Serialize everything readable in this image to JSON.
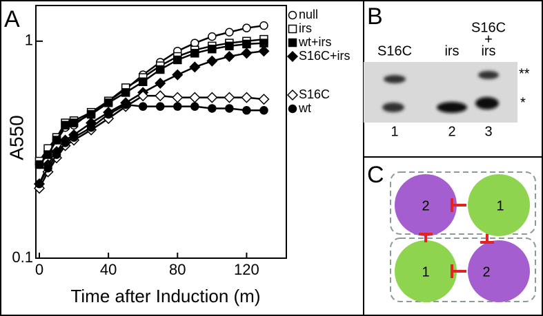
{
  "panels": {
    "a": "A",
    "b": "B",
    "c": "C"
  },
  "chart_data": {
    "type": "line",
    "xlabel": "Time after Induction (m)",
    "ylabel": "A550",
    "x": [
      0,
      5,
      10,
      15,
      20,
      30,
      40,
      50,
      60,
      70,
      80,
      90,
      100,
      110,
      120,
      130
    ],
    "xlim": [
      -2,
      143
    ],
    "xticks": [
      0,
      40,
      80,
      120
    ],
    "ylim": [
      0.1,
      1.46
    ],
    "yticks": [
      0.1,
      1
    ],
    "log_y": true,
    "series": [
      {
        "name": "null",
        "color": "#000000",
        "marker": "circle-open",
        "values": [
          0.27,
          0.31,
          0.35,
          0.4,
          0.41,
          0.47,
          0.53,
          0.6,
          0.7,
          0.8,
          0.9,
          0.98,
          1.05,
          1.1,
          1.15,
          1.18
        ]
      },
      {
        "name": "irs",
        "color": "#000000",
        "marker": "square-open",
        "values": [
          0.28,
          0.32,
          0.36,
          0.42,
          0.43,
          0.47,
          0.53,
          0.61,
          0.68,
          0.77,
          0.85,
          0.91,
          0.95,
          0.98,
          1.0,
          1.02
        ]
      },
      {
        "name": "wt+irs",
        "color": "#000000",
        "marker": "square",
        "values": [
          0.27,
          0.3,
          0.35,
          0.41,
          0.42,
          0.46,
          0.52,
          0.58,
          0.65,
          0.74,
          0.82,
          0.88,
          0.92,
          0.95,
          0.97,
          0.98
        ]
      },
      {
        "name": "S16C+irs",
        "color": "#000000",
        "marker": "diamond",
        "values": [
          0.22,
          0.27,
          0.31,
          0.35,
          0.37,
          0.42,
          0.47,
          0.52,
          0.58,
          0.64,
          0.7,
          0.76,
          0.81,
          0.85,
          0.88,
          0.9
        ]
      },
      {
        "name": "S16C",
        "color": "#000000",
        "marker": "diamond-open",
        "values": [
          0.21,
          0.25,
          0.29,
          0.33,
          0.35,
          0.39,
          0.44,
          0.5,
          0.56,
          0.56,
          0.55,
          0.55,
          0.55,
          0.55,
          0.55,
          0.54
        ]
      },
      {
        "name": "wt",
        "color": "#000000",
        "marker": "circle",
        "values": [
          0.22,
          0.26,
          0.3,
          0.34,
          0.36,
          0.4,
          0.46,
          0.51,
          0.5,
          0.5,
          0.5,
          0.5,
          0.49,
          0.49,
          0.48,
          0.48
        ]
      }
    ]
  },
  "gel": {
    "lanes": [
      {
        "label": [
          "S16C"
        ],
        "number": "1"
      },
      {
        "label": [
          "irs"
        ],
        "number": "2"
      },
      {
        "label": [
          "S16C",
          "+",
          "irs"
        ],
        "number": "3"
      }
    ],
    "band_labels": [
      "**",
      "*"
    ]
  },
  "diagram": {
    "nodes": [
      "2",
      "1",
      "1",
      "2"
    ]
  }
}
